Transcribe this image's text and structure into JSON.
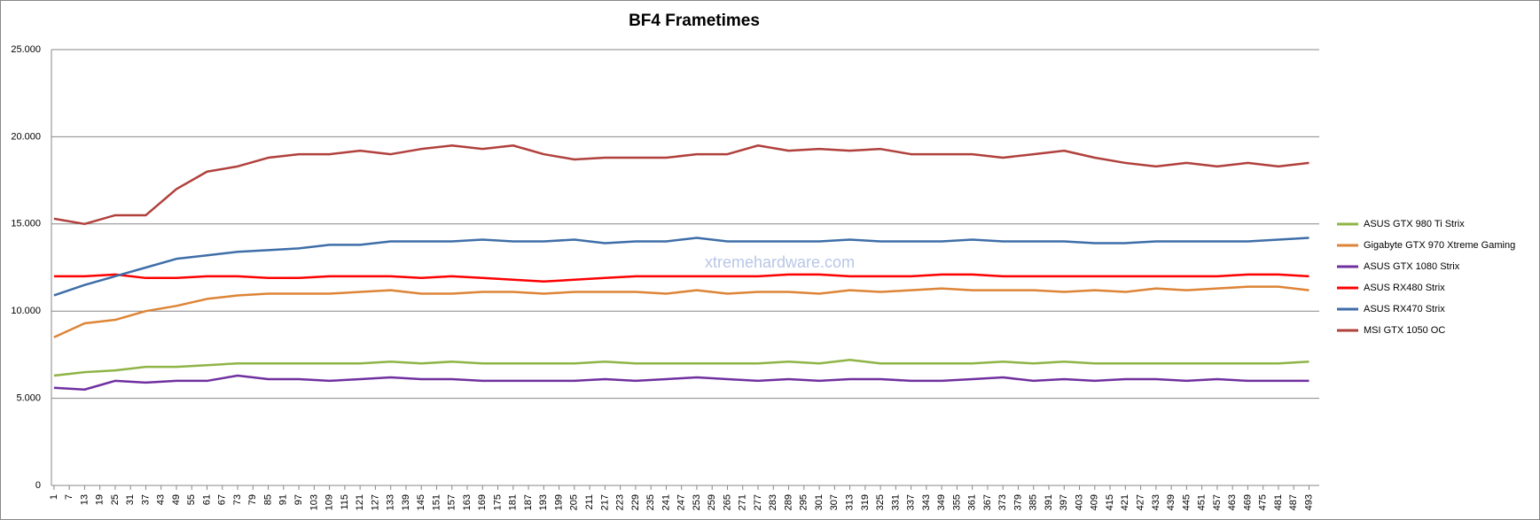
{
  "chart_data": {
    "type": "line",
    "title": "BF4 Frametimes",
    "watermark": "xtremehardware.com",
    "x": [
      1,
      13,
      25,
      37,
      49,
      61,
      73,
      85,
      97,
      109,
      121,
      133,
      145,
      157,
      169,
      181,
      193,
      205,
      217,
      229,
      241,
      253,
      265,
      277,
      289,
      301,
      313,
      325,
      337,
      349,
      361,
      373,
      385,
      397,
      409,
      421,
      433,
      445,
      457,
      469,
      481,
      493
    ],
    "xlim": [
      0,
      497
    ],
    "xticks": [
      1,
      7,
      13,
      19,
      25,
      31,
      37,
      43,
      49,
      55,
      61,
      67,
      73,
      79,
      85,
      91,
      97,
      103,
      109,
      115,
      121,
      127,
      133,
      139,
      145,
      151,
      157,
      163,
      169,
      175,
      181,
      187,
      193,
      199,
      205,
      211,
      217,
      223,
      229,
      235,
      241,
      247,
      253,
      259,
      265,
      271,
      277,
      283,
      289,
      295,
      301,
      307,
      313,
      319,
      325,
      331,
      337,
      343,
      349,
      355,
      361,
      367,
      373,
      379,
      385,
      391,
      397,
      403,
      409,
      415,
      421,
      427,
      433,
      439,
      445,
      451,
      457,
      463,
      469,
      475,
      481,
      487,
      493
    ],
    "ylim": [
      0,
      25
    ],
    "yticks": [
      {
        "value": 0,
        "label": "0"
      },
      {
        "value": 5,
        "label": "5.000"
      },
      {
        "value": 10,
        "label": "10.000"
      },
      {
        "value": 15,
        "label": "15.000"
      },
      {
        "value": 20,
        "label": "20.000"
      },
      {
        "value": 25,
        "label": "25.000"
      }
    ],
    "grid": true,
    "legend": "right",
    "series": [
      {
        "name": "ASUS GTX 980 Ti Strix",
        "color": "#8fb446",
        "values": [
          6.3,
          6.5,
          6.6,
          6.8,
          6.8,
          6.9,
          7,
          7,
          7,
          7,
          7,
          7.1,
          7,
          7.1,
          7,
          7,
          7,
          7,
          7.1,
          7,
          7,
          7,
          7,
          7,
          7.1,
          7,
          7.2,
          7,
          7,
          7,
          7,
          7.1,
          7,
          7.1,
          7,
          7,
          7,
          7,
          7,
          7,
          7,
          7.1
        ]
      },
      {
        "name": "Gigabyte GTX 970 Xtreme Gaming",
        "color": "#dd8436",
        "values": [
          8.5,
          9.3,
          9.5,
          10,
          10.3,
          10.7,
          10.9,
          11,
          11,
          11,
          11.1,
          11.2,
          11,
          11,
          11.1,
          11.1,
          11,
          11.1,
          11.1,
          11.1,
          11,
          11.2,
          11,
          11.1,
          11.1,
          11,
          11.2,
          11.1,
          11.2,
          11.3,
          11.2,
          11.2,
          11.2,
          11.1,
          11.2,
          11.1,
          11.3,
          11.2,
          11.3,
          11.4,
          11.4,
          11.2
        ]
      },
      {
        "name": "ASUS GTX 1080 Strix",
        "color": "#7030a0",
        "values": [
          5.6,
          5.5,
          6,
          5.9,
          6,
          6,
          6.3,
          6.1,
          6.1,
          6,
          6.1,
          6.2,
          6.1,
          6.1,
          6,
          6,
          6,
          6,
          6.1,
          6,
          6.1,
          6.2,
          6.1,
          6,
          6.1,
          6,
          6.1,
          6.1,
          6,
          6,
          6.1,
          6.2,
          6,
          6.1,
          6,
          6.1,
          6.1,
          6,
          6.1,
          6,
          6,
          6
        ]
      },
      {
        "name": "ASUS RX480 Strix",
        "color": "#ff0000",
        "values": [
          12,
          12,
          12.1,
          11.9,
          11.9,
          12,
          12,
          11.9,
          11.9,
          12,
          12,
          12,
          11.9,
          12,
          11.9,
          11.8,
          11.7,
          11.8,
          11.9,
          12,
          12,
          12,
          12,
          12,
          12.1,
          12.1,
          12,
          12,
          12,
          12.1,
          12.1,
          12,
          12,
          12,
          12,
          12,
          12,
          12,
          12,
          12.1,
          12.1,
          12
        ]
      },
      {
        "name": "ASUS RX470 Strix",
        "color": "#3e6ea8",
        "values": [
          10.9,
          11.5,
          12,
          12.5,
          13,
          13.2,
          13.4,
          13.5,
          13.6,
          13.8,
          13.8,
          14,
          14,
          14,
          14.1,
          14,
          14,
          14.1,
          13.9,
          14,
          14,
          14.2,
          14,
          14,
          14,
          14,
          14.1,
          14,
          14,
          14,
          14.1,
          14,
          14,
          14,
          13.9,
          13.9,
          14,
          14,
          14,
          14,
          14.1,
          14.2
        ]
      },
      {
        "name": "MSI GTX 1050 OC",
        "color": "#b0403c",
        "values": [
          15.3,
          15,
          15.5,
          15.5,
          17,
          18,
          18.3,
          18.8,
          19,
          19,
          19.2,
          19,
          19.3,
          19.5,
          19.3,
          19.5,
          19,
          18.7,
          18.8,
          18.8,
          18.8,
          19,
          19,
          19.5,
          19.2,
          19.3,
          19.2,
          19.3,
          19,
          19,
          19,
          18.8,
          19,
          19.2,
          18.8,
          18.5,
          18.3,
          18.5,
          18.3,
          18.5,
          18.3,
          18.5
        ]
      }
    ]
  }
}
